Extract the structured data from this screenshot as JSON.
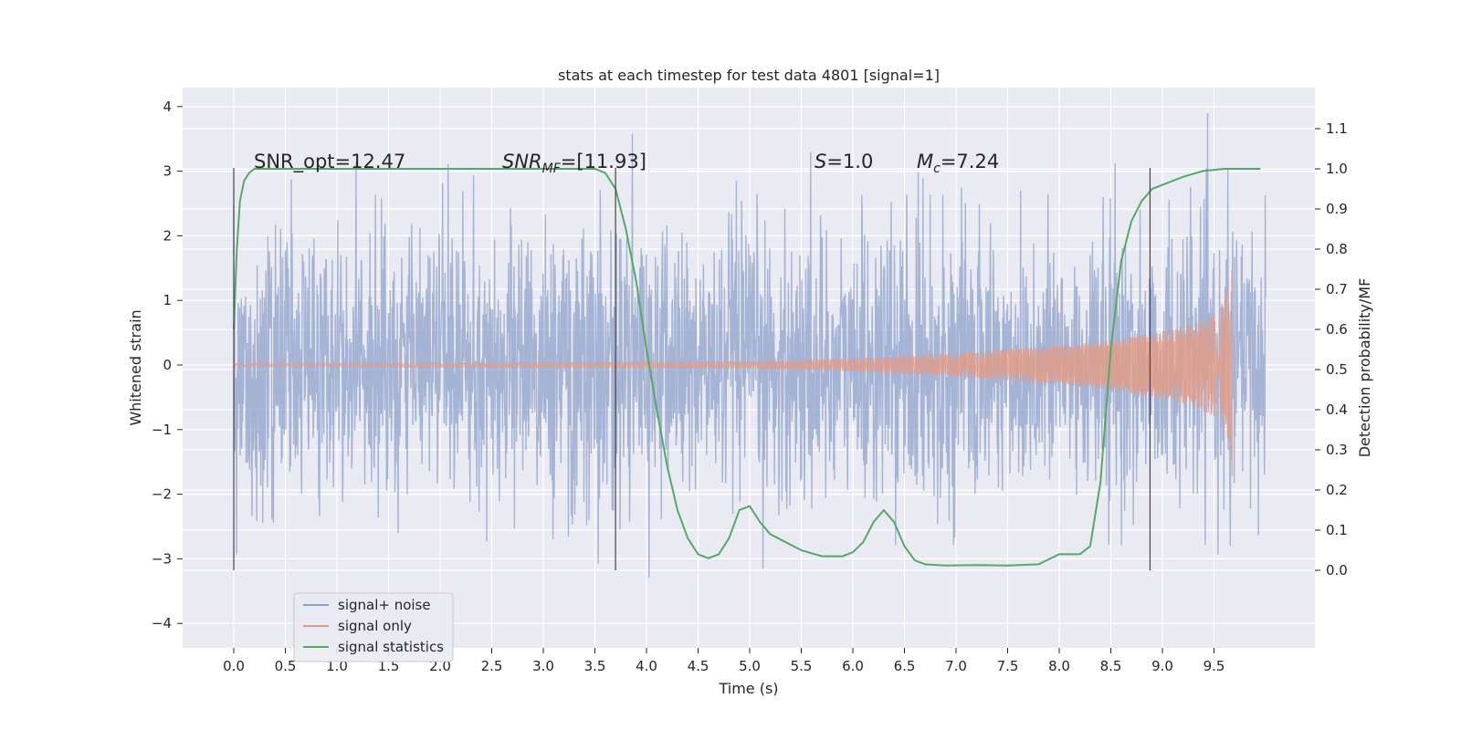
{
  "chart_data": {
    "type": "line",
    "title": "stats at each timestep for test data 4801 [signal=1]",
    "xlabel": "Time (s)",
    "ylabel": "Whitened strain",
    "ylabel_right": "Detection probability/MF",
    "xlim": [
      -0.5,
      10.5
    ],
    "ylim": [
      -4.4,
      4.3
    ],
    "ylim_right": [
      -0.2,
      1.2
    ],
    "x_ticks": [
      0.0,
      0.5,
      1.0,
      1.5,
      2.0,
      2.5,
      3.0,
      3.5,
      4.0,
      4.5,
      5.0,
      5.5,
      6.0,
      6.5,
      7.0,
      7.5,
      8.0,
      8.5,
      9.0,
      9.5
    ],
    "x_tick_labels": [
      "0.0",
      "0.5",
      "1.0",
      "1.5",
      "2.0",
      "2.5",
      "3.0",
      "3.5",
      "4.0",
      "4.5",
      "5.0",
      "5.5",
      "6.0",
      "6.5",
      "7.0",
      "7.5",
      "8.0",
      "8.5",
      "9.0",
      "9.5"
    ],
    "y_ticks": [
      -4,
      -3,
      -2,
      -1,
      0,
      1,
      2,
      3,
      4
    ],
    "y_tick_labels": [
      "−4",
      "−3",
      "−2",
      "−1",
      "0",
      "1",
      "2",
      "3",
      "4"
    ],
    "y_right_ticks": [
      0.0,
      0.1,
      0.2,
      0.3,
      0.4,
      0.5,
      0.6,
      0.7,
      0.8,
      0.9,
      1.0,
      1.1
    ],
    "y_right_tick_labels": [
      "0.0",
      "0.1",
      "0.2",
      "0.3",
      "0.4",
      "0.5",
      "0.6",
      "0.7",
      "0.8",
      "0.9",
      "1.0",
      "1.1"
    ],
    "grid": true,
    "legend_position": "lower-left",
    "series": [
      {
        "name": "signal+ noise",
        "color": "#8da0cb",
        "kind": "noisy-strain",
        "x_range": [
          0.0,
          10.0
        ],
        "envelope": [
          -1.8,
          1.8
        ],
        "extremes": [
          -4.0,
          3.9
        ]
      },
      {
        "name": "signal only",
        "color": "#e39b85",
        "kind": "chirp",
        "x_range": [
          0.0,
          9.68
        ],
        "amplitude_envelope": {
          "x": [
            0.0,
            5.0,
            6.0,
            7.0,
            8.0,
            8.5,
            9.0,
            9.3,
            9.5,
            9.6,
            9.65,
            9.68
          ],
          "y": [
            0.02,
            0.05,
            0.1,
            0.18,
            0.3,
            0.38,
            0.52,
            0.65,
            0.8,
            1.0,
            1.3,
            1.75
          ]
        }
      },
      {
        "name": "signal statistics",
        "color": "#55a868",
        "axis": "right",
        "x": [
          0.0,
          0.03,
          0.06,
          0.1,
          0.15,
          0.2,
          0.5,
          1.0,
          2.0,
          3.0,
          3.3,
          3.5,
          3.6,
          3.7,
          3.8,
          3.9,
          4.0,
          4.1,
          4.2,
          4.3,
          4.4,
          4.5,
          4.6,
          4.7,
          4.8,
          4.9,
          5.0,
          5.1,
          5.2,
          5.35,
          5.5,
          5.7,
          5.9,
          6.0,
          6.1,
          6.2,
          6.3,
          6.4,
          6.5,
          6.6,
          6.7,
          6.9,
          7.2,
          7.5,
          7.8,
          8.0,
          8.2,
          8.3,
          8.4,
          8.5,
          8.6,
          8.7,
          8.8,
          8.9,
          9.0,
          9.2,
          9.4,
          9.6,
          9.8,
          9.95
        ],
        "values": [
          0.6,
          0.8,
          0.92,
          0.97,
          0.99,
          1.0,
          1.0,
          1.0,
          1.0,
          1.0,
          1.0,
          1.0,
          0.99,
          0.95,
          0.85,
          0.72,
          0.55,
          0.4,
          0.26,
          0.15,
          0.08,
          0.04,
          0.03,
          0.04,
          0.08,
          0.15,
          0.16,
          0.12,
          0.09,
          0.07,
          0.05,
          0.035,
          0.035,
          0.045,
          0.07,
          0.12,
          0.15,
          0.12,
          0.06,
          0.025,
          0.015,
          0.012,
          0.013,
          0.012,
          0.015,
          0.04,
          0.04,
          0.06,
          0.22,
          0.55,
          0.77,
          0.87,
          0.92,
          0.95,
          0.96,
          0.98,
          0.995,
          1.0,
          1.0,
          1.0
        ]
      }
    ],
    "vertical_lines": [
      0.0,
      3.7,
      8.88
    ],
    "annotations": {
      "snr_opt": "SNR_opt=12.47",
      "snr_mf_main": "SNR",
      "snr_mf_sub": "MF",
      "snr_mf_value": "=[11.93]",
      "s_symbol": "S",
      "s_value": "=1.0",
      "mc_symbol": "M",
      "mc_sub": "c",
      "mc_value": "=7.24"
    }
  }
}
